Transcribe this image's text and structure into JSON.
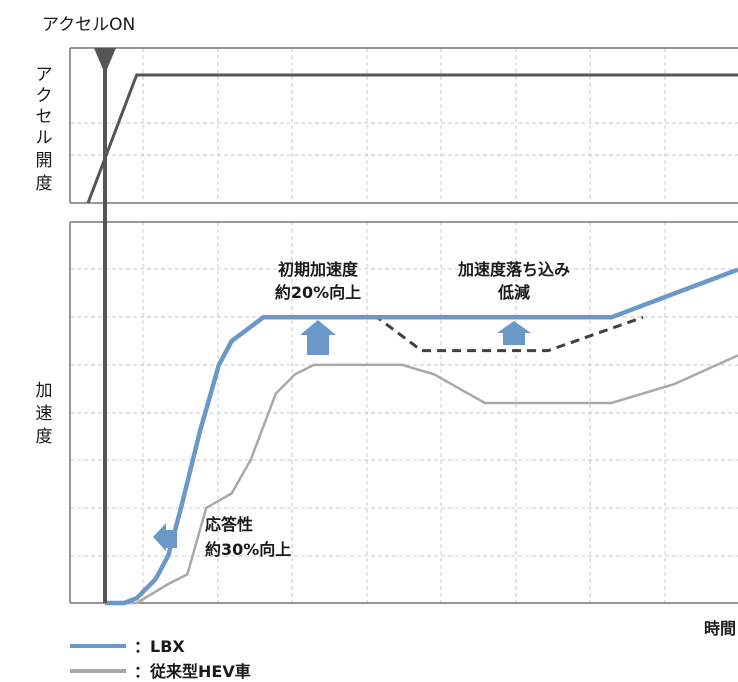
{
  "chart_data": {
    "type": "line",
    "xlabel": "時間",
    "ylabel_top": [
      "ア",
      "ク",
      "セ",
      "ル",
      "開",
      "度"
    ],
    "ylabel_bottom": [
      "加",
      "速",
      "度"
    ],
    "marker_label": "アクセルON",
    "grid": "dashed",
    "x_range": [
      0,
      10
    ],
    "accel_panel": {
      "y_range": [
        0,
        1
      ],
      "pedal_line": {
        "x": [
          0.25,
          0.5,
          0.5,
          10
        ],
        "y": [
          0,
          1,
          1,
          1
        ]
      }
    },
    "accel_range": [
      0,
      8
    ],
    "series": [
      {
        "name": "LBX",
        "color": "#6a98c8",
        "x": [
          0,
          0.3,
          0.5,
          0.8,
          1.0,
          1.2,
          1.5,
          1.8,
          2.0,
          2.5,
          3.0,
          4.0,
          5.0,
          6.0,
          7.0,
          8.0,
          9.0,
          10.0
        ],
        "y": [
          0,
          0,
          0.1,
          0.5,
          1.0,
          2.0,
          3.6,
          5.0,
          5.5,
          6.0,
          6.0,
          6.0,
          6.0,
          6.0,
          6.0,
          6.0,
          6.5,
          7.0
        ]
      },
      {
        "name": "従来型HEV車",
        "color": "#a9a9a9",
        "x": [
          0,
          0.5,
          1.0,
          1.3,
          1.6,
          2.0,
          2.3,
          2.7,
          3.0,
          3.3,
          4.0,
          4.7,
          5.2,
          6.0,
          7.0,
          8.0,
          9.0,
          10.0
        ],
        "y": [
          0,
          0,
          0.4,
          0.6,
          2.0,
          2.3,
          3.0,
          4.4,
          4.8,
          5.0,
          5.0,
          5.0,
          4.8,
          4.2,
          4.2,
          4.2,
          4.6,
          5.2
        ]
      },
      {
        "name": "",
        "style": "dashed",
        "color": "#404040",
        "x": [
          4.0,
          4.3,
          5.0,
          6.0,
          7.0,
          8.5
        ],
        "y": [
          6.0,
          6.0,
          5.3,
          5.3,
          5.3,
          6.0
        ]
      }
    ],
    "annotations": [
      {
        "lines": [
          "初期加速度",
          "約20%向上"
        ]
      },
      {
        "lines": [
          "加速度落ち込み",
          "低減"
        ]
      },
      {
        "lines": [
          "応答性",
          "約30%向上"
        ]
      }
    ],
    "legend": [
      {
        "label": "：LBX",
        "color": "#6a98c8"
      },
      {
        "label": "：従来型HEV車",
        "color": "#a9a9a9"
      }
    ]
  }
}
